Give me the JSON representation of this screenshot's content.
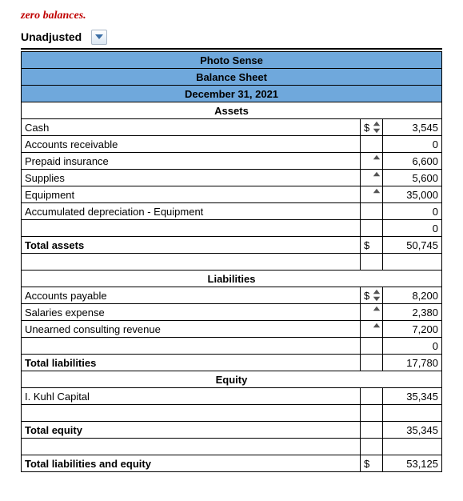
{
  "fragment_text": "zero balances.",
  "dropdown": {
    "label": "Unadjusted"
  },
  "headers": {
    "company": "Photo Sense",
    "report": "Balance Sheet",
    "date": "December 31, 2021"
  },
  "sections": {
    "assets": "Assets",
    "liabilities": "Liabilities",
    "equity": "Equity"
  },
  "assets": {
    "rows": [
      {
        "label": "Cash",
        "sym": "$",
        "amt": "3,545",
        "spin": "both"
      },
      {
        "label": "Accounts receivable",
        "sym": "",
        "amt": "0",
        "spin": "none"
      },
      {
        "label": "Prepaid insurance",
        "sym": "",
        "amt": "6,600",
        "spin": "up"
      },
      {
        "label": "Supplies",
        "sym": "",
        "amt": "5,600",
        "spin": "up"
      },
      {
        "label": "Equipment",
        "sym": "",
        "amt": "35,000",
        "spin": "up"
      },
      {
        "label": "Accumulated depreciation - Equipment",
        "sym": "",
        "amt": "0",
        "spin": "none"
      },
      {
        "label": "",
        "sym": "",
        "amt": "0",
        "spin": "none"
      }
    ],
    "total_label": "Total assets",
    "total_sym": "$",
    "total_amt": "50,745"
  },
  "liabilities": {
    "rows": [
      {
        "label": "Accounts payable",
        "sym": "$",
        "amt": "8,200",
        "spin": "both"
      },
      {
        "label": "Salaries expense",
        "sym": "",
        "amt": "2,380",
        "spin": "up"
      },
      {
        "label": "Unearned consulting revenue",
        "sym": "",
        "amt": "7,200",
        "spin": "up"
      },
      {
        "label": "",
        "sym": "",
        "amt": "0",
        "spin": "none"
      }
    ],
    "total_label": "Total liabilities",
    "total_sym": "",
    "total_amt": "17,780"
  },
  "equity": {
    "rows": [
      {
        "label": "I. Kuhl Capital",
        "sym": "",
        "amt": "35,345",
        "spin": "none"
      },
      {
        "label": "",
        "sym": "",
        "amt": "",
        "spin": "none"
      }
    ],
    "total_label": "Total equity",
    "total_sym": "",
    "total_amt": "35,345"
  },
  "grand": {
    "label": "Total liabilities and equity",
    "sym": "$",
    "amt": "53,125"
  },
  "colors": {
    "header_bg": "#6fa8dc",
    "border": "#000000",
    "red": "#c00000"
  }
}
